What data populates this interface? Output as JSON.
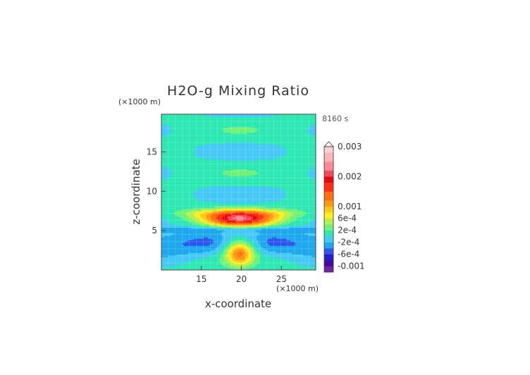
{
  "chart_data": {
    "type": "heatmap",
    "title": "H2O-g Mixing Ratio",
    "xlabel": "x-coordinate",
    "ylabel": "z-coordinate",
    "x_unit": "(×1000 m)",
    "y_unit": "(×1000 m)",
    "time_label": "8160 s",
    "xlim": [
      10,
      29.3
    ],
    "ylim": [
      0,
      19.8
    ],
    "x_ticks": [
      15,
      20,
      25
    ],
    "y_ticks": [
      5,
      10,
      15
    ],
    "colorbar": {
      "labels": [
        "0.003",
        "0.002",
        "0.001",
        "6e-4",
        "2e-4",
        "-2e-4",
        "-6e-4",
        "-0.001"
      ],
      "label_values": [
        0.003,
        0.002,
        0.001,
        0.0006,
        0.0002,
        -0.0002,
        -0.0006,
        -0.001
      ],
      "levels": [
        -0.0012,
        -0.001,
        -0.0008,
        -0.0006,
        -0.0004,
        -0.0002,
        0,
        0.0002,
        0.0004,
        0.0006,
        0.0008,
        0.001,
        0.0012,
        0.0015,
        0.0018,
        0.002,
        0.0022,
        0.0025,
        0.0028,
        0.003
      ],
      "colors": [
        "#7a1fa8",
        "#3b10a0",
        "#2a1bd0",
        "#2f55f0",
        "#1fa8ee",
        "#45c8f5",
        "#2ee8b4",
        "#6ef27a",
        "#b4f050",
        "#ffee1e",
        "#ffc81e",
        "#ff9a12",
        "#ff6e10",
        "#ff3014",
        "#e80810",
        "#f24a58",
        "#ff8a92",
        "#ffb4b4",
        "#ffd2d2"
      ]
    }
  }
}
